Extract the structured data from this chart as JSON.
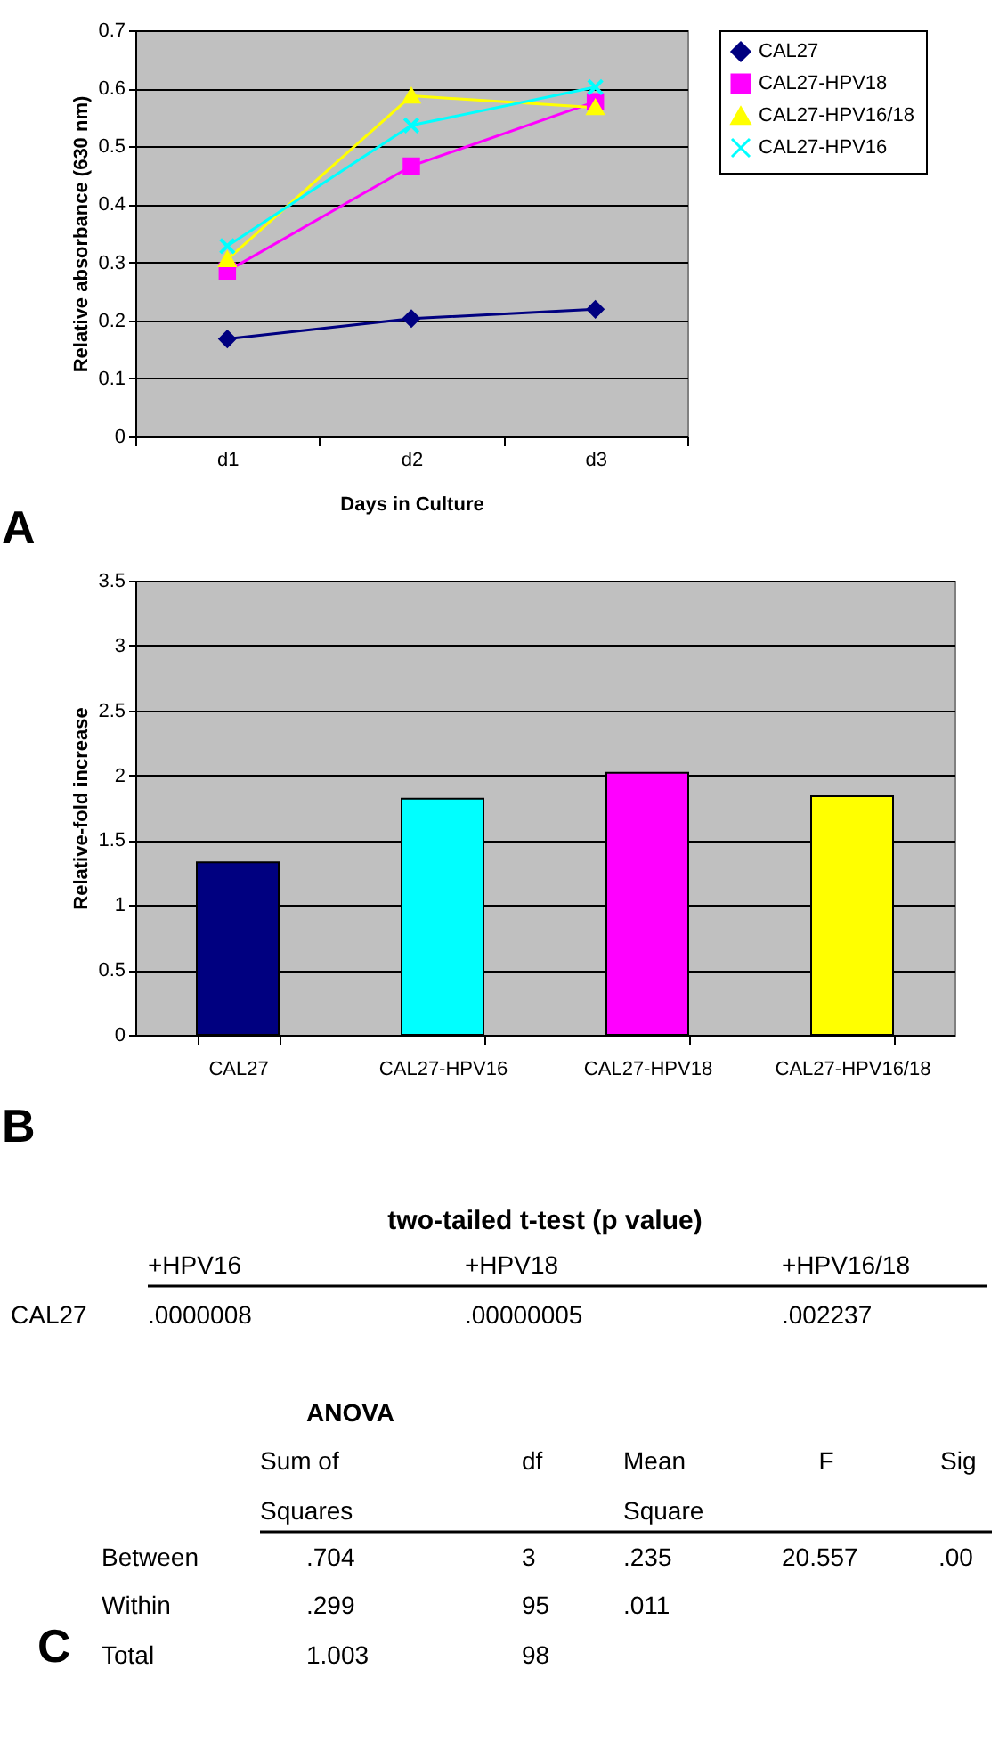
{
  "chart_data": [
    {
      "type": "line",
      "xlabel": "Days in Culture",
      "ylabel": "Relative absorbance (630 nm)",
      "categories": [
        "d1",
        "d2",
        "d3"
      ],
      "series": [
        {
          "name": "CAL27",
          "color": "#000080",
          "marker": "diamond",
          "values": [
            0.168,
            0.203,
            0.219
          ]
        },
        {
          "name": "CAL27-HPV18",
          "color": "#ff00ff",
          "marker": "square",
          "values": [
            0.285,
            0.466,
            0.577
          ]
        },
        {
          "name": "CAL27-HPV16/18",
          "color": "#ffff00",
          "marker": "triangle",
          "values": [
            0.305,
            0.587,
            0.567
          ]
        },
        {
          "name": "CAL27-HPV16",
          "color": "#00ffff",
          "marker": "cross",
          "values": [
            0.328,
            0.536,
            0.602
          ]
        }
      ],
      "ylim": [
        0,
        0.7
      ],
      "yticks": [
        0,
        0.1,
        0.2,
        0.3,
        0.4,
        0.5,
        0.6,
        0.7
      ],
      "grid": "y",
      "legend": "right",
      "line_style": "solid",
      "annotations": [
        "A"
      ]
    },
    {
      "type": "bar",
      "ylabel": "Relative-fold increase",
      "categories": [
        "CAL27",
        "CAL27-HPV16",
        "CAL27-HPV18",
        "CAL27-HPV16/18"
      ],
      "values": [
        1.33,
        1.82,
        2.02,
        1.84
      ],
      "colors": [
        "#000080",
        "#00ffff",
        "#ff00ff",
        "#ffff00"
      ],
      "ylim": [
        0,
        3.5
      ],
      "yticks": [
        0,
        0.5,
        1,
        1.5,
        2,
        2.5,
        3,
        3.5
      ],
      "grid": "y",
      "annotations": [
        "B"
      ]
    },
    {
      "type": "other",
      "title": "two-tailed t-test (p value)",
      "annotations": [
        "+HPV16",
        "+HPV18",
        "+HPV16/18",
        "CAL27",
        ".0000008",
        ".00000005",
        ".002237",
        "ANOVA",
        "Sum of",
        "df",
        "Mean",
        "F",
        "Sig",
        "Squares",
        "Square",
        "Between",
        ".704",
        "3",
        ".235",
        "20.557",
        ".00",
        "Within",
        ".299",
        "95",
        ".011",
        "Total",
        "1.003",
        "98",
        "C"
      ]
    }
  ]
}
